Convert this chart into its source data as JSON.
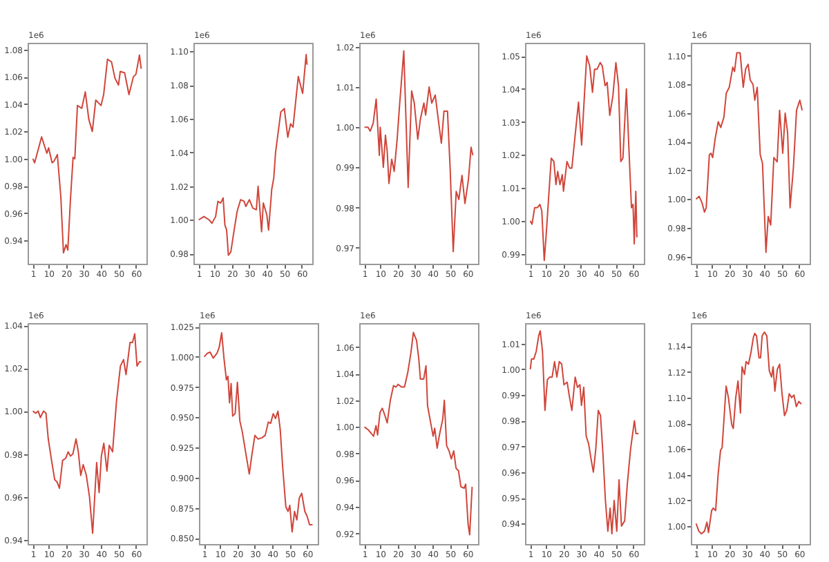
{
  "chart_data": [
    {
      "type": "line",
      "ylabel": "1e6",
      "color": "#d0453a",
      "xlim": [
        -2,
        66
      ],
      "ylim": [
        0.923,
        1.085
      ],
      "xticks": [
        1,
        10,
        20,
        30,
        40,
        50,
        60
      ],
      "yticks": [
        0.94,
        0.96,
        0.98,
        {
          "value": 1,
          "label": "1.00"
        },
        1.02,
        1.04,
        1.06,
        1.08
      ],
      "x": [
        1,
        2,
        6,
        9,
        10,
        12,
        13,
        15,
        17,
        18.5,
        20,
        21,
        22.5,
        24,
        25,
        26.5,
        29,
        31,
        33,
        35,
        37,
        40,
        41.5,
        43.7,
        46,
        48,
        50,
        51,
        53.5,
        56,
        58.5,
        60,
        62,
        63
      ],
      "values": [
        1.0,
        0.997,
        1.016,
        1.004,
        1.008,
        0.997,
        0.998,
        1.003,
        0.972,
        0.931,
        0.937,
        0.933,
        0.97,
        1.001,
        1.0,
        1.039,
        1.037,
        1.049,
        1.029,
        1.02,
        1.043,
        1.039,
        1.047,
        1.073,
        1.071,
        1.059,
        1.054,
        1.064,
        1.063,
        1.047,
        1.06,
        1.062,
        1.076,
        1.066
      ]
    },
    {
      "type": "line",
      "ylabel": "1e6",
      "color": "#d0453a",
      "xlim": [
        -2,
        66
      ],
      "ylim": [
        0.974,
        1.105
      ],
      "xticks": [
        1,
        10,
        20,
        30,
        40,
        50,
        60
      ],
      "yticks": [
        0.98,
        {
          "value": 1,
          "label": "1.00"
        },
        1.02,
        1.04,
        1.06,
        1.08,
        {
          "value": 1.1,
          "label": "1.10"
        }
      ],
      "x": [
        1,
        4,
        7,
        8.6,
        10.7,
        12,
        13.6,
        15,
        16,
        17,
        18,
        19.4,
        21,
        23,
        25,
        27,
        28,
        30,
        32,
        34,
        35,
        37,
        38,
        40,
        41,
        42.8,
        44,
        45,
        48,
        50,
        52,
        53.6,
        55,
        58,
        60.5,
        62.5,
        63
      ],
      "values": [
        1.0,
        1.002,
        1.0,
        0.998,
        1.002,
        1.011,
        1.01,
        1.013,
        0.997,
        0.994,
        0.979,
        0.981,
        0.992,
        1.005,
        1.012,
        1.011,
        1.008,
        1.012,
        1.007,
        1.006,
        1.02,
        0.993,
        1.01,
        1.003,
        0.994,
        1.018,
        1.025,
        1.04,
        1.064,
        1.066,
        1.049,
        1.057,
        1.055,
        1.085,
        1.075,
        1.098,
        1.092
      ]
    },
    {
      "type": "line",
      "ylabel": "1e6",
      "color": "#d0453a",
      "xlim": [
        -2,
        66
      ],
      "ylim": [
        0.966,
        1.021
      ],
      "xticks": [
        1,
        10,
        20,
        30,
        40,
        50,
        60
      ],
      "yticks": [
        0.97,
        0.98,
        0.99,
        {
          "value": 1,
          "label": "1.00"
        },
        1.01,
        1.02
      ],
      "x": [
        1,
        3,
        4.3,
        6,
        7.7,
        9.5,
        10,
        11.8,
        13,
        14,
        15,
        16.6,
        18,
        19.7,
        21,
        23.5,
        26,
        28,
        29.5,
        31.5,
        33,
        35,
        36,
        38,
        39.5,
        41.5,
        43.5,
        45,
        46.5,
        48.5,
        50,
        51.8,
        53.5,
        55,
        56.8,
        58.5,
        60.5,
        62,
        63
      ],
      "values": [
        1.0,
        1.0,
        0.999,
        1.001,
        1.007,
        0.993,
        1.0,
        0.99,
        0.998,
        0.994,
        0.986,
        0.992,
        0.989,
        0.997,
        1.005,
        1.019,
        0.985,
        1.009,
        1.006,
        0.997,
        1.002,
        1.006,
        1.003,
        1.01,
        1.006,
        1.008,
        1.001,
        0.996,
        1.004,
        1.004,
        0.99,
        0.969,
        0.984,
        0.982,
        0.988,
        0.981,
        0.987,
        0.995,
        0.993
      ]
    },
    {
      "type": "line",
      "ylabel": "1e6",
      "color": "#d0453a",
      "xlim": [
        -2,
        66
      ],
      "ylim": [
        0.987,
        1.054
      ],
      "xticks": [
        1,
        10,
        20,
        30,
        40,
        50,
        60
      ],
      "yticks": [
        0.99,
        {
          "value": 1,
          "label": "1.00"
        },
        1.01,
        1.02,
        1.03,
        1.04,
        1.05
      ],
      "x": [
        1,
        2,
        3.5,
        5,
        6.5,
        7.6,
        9,
        10,
        11,
        13,
        14.5,
        15.7,
        16.7,
        18,
        19.3,
        20,
        22,
        23.5,
        24.8,
        26.3,
        28.6,
        30.4,
        32.2,
        33.3,
        35,
        36.6,
        37.8,
        39.3,
        41,
        42.2,
        43.8,
        45,
        46.5,
        48.3,
        50,
        51.5,
        52.8,
        54,
        56,
        58.9,
        59.8,
        60.5,
        61.4,
        62
      ],
      "values": [
        1.0,
        0.999,
        1.004,
        1.004,
        1.005,
        1.003,
        0.988,
        0.995,
        1.003,
        1.019,
        1.018,
        1.011,
        1.015,
        1.011,
        1.014,
        1.009,
        1.018,
        1.016,
        1.016,
        1.024,
        1.036,
        1.023,
        1.04,
        1.05,
        1.047,
        1.039,
        1.046,
        1.046,
        1.048,
        1.047,
        1.041,
        1.042,
        1.032,
        1.038,
        1.048,
        1.041,
        1.018,
        1.019,
        1.04,
        1.004,
        1.005,
        0.993,
        1.009,
        0.995
      ]
    },
    {
      "type": "line",
      "ylabel": "1e6",
      "color": "#d0453a",
      "xlim": [
        -2,
        66
      ],
      "ylim": [
        0.955,
        1.109
      ],
      "xticks": [
        1,
        10,
        20,
        30,
        40,
        50,
        60
      ],
      "yticks": [
        0.96,
        0.98,
        {
          "value": 1,
          "label": "1.00"
        },
        1.02,
        1.04,
        1.06,
        1.08,
        {
          "value": 1.1,
          "label": "1.10"
        }
      ],
      "x": [
        1,
        2.8,
        4.5,
        5.8,
        6.8,
        8.6,
        9.5,
        10.5,
        11.9,
        13.7,
        15.1,
        16.9,
        18.3,
        20,
        22,
        23,
        24.3,
        26.2,
        28,
        29.4,
        30.8,
        32,
        33.6,
        34.6,
        36,
        37.7,
        39,
        41,
        42.3,
        43.7,
        45.5,
        47.4,
        48.8,
        50.6,
        52,
        53.4,
        54.8,
        56.7,
        58.5,
        60.4,
        61.7
      ],
      "values": [
        1.0,
        1.002,
        0.997,
        0.991,
        0.994,
        1.031,
        1.032,
        1.029,
        1.042,
        1.054,
        1.05,
        1.057,
        1.074,
        1.078,
        1.092,
        1.089,
        1.102,
        1.102,
        1.078,
        1.091,
        1.094,
        1.083,
        1.08,
        1.069,
        1.078,
        1.031,
        1.025,
        0.963,
        0.988,
        0.982,
        1.029,
        1.026,
        1.062,
        1.032,
        1.06,
        1.046,
        0.994,
        1.022,
        1.062,
        1.069,
        1.062
      ]
    },
    {
      "type": "line",
      "ylabel": "1e6",
      "color": "#d0453a",
      "xlim": [
        -2,
        66
      ],
      "ylim": [
        0.938,
        1.041
      ],
      "xticks": [
        1,
        10,
        20,
        30,
        40,
        50,
        60
      ],
      "yticks": [
        0.94,
        0.96,
        0.98,
        {
          "value": 1,
          "label": "1.00"
        },
        1.02,
        1.04
      ],
      "x": [
        1,
        2.6,
        4,
        5.3,
        7.1,
        8.5,
        9.8,
        11.7,
        13.5,
        14.8,
        16.2,
        18,
        19.8,
        21.2,
        22.5,
        23.9,
        25.7,
        27,
        28.4,
        29.8,
        31.6,
        33.4,
        35.2,
        37.5,
        38.9,
        40.2,
        41.6,
        43.4,
        44.7,
        46.6,
        48.8,
        51.1,
        52.9,
        54.3,
        56.6,
        58,
        59.3,
        60.6,
        62,
        63
      ],
      "values": [
        1.0,
        0.999,
        1.0,
        0.997,
        1.0,
        0.999,
        0.987,
        0.977,
        0.968,
        0.967,
        0.964,
        0.977,
        0.978,
        0.981,
        0.979,
        0.98,
        0.987,
        0.981,
        0.97,
        0.975,
        0.97,
        0.96,
        0.943,
        0.976,
        0.962,
        0.979,
        0.985,
        0.972,
        0.984,
        0.981,
        1.004,
        1.021,
        1.024,
        1.017,
        1.032,
        1.032,
        1.036,
        1.021,
        1.023,
        1.023
      ]
    },
    {
      "type": "line",
      "ylabel": "1e6",
      "color": "#d0453a",
      "xlim": [
        -2,
        66
      ],
      "ylim": [
        0.845,
        1.028
      ],
      "xticks": [
        1,
        10,
        20,
        30,
        40,
        50,
        60
      ],
      "yticks": [
        {
          "value": 0.85,
          "label": "0.850"
        },
        0.875,
        {
          "value": 0.9,
          "label": "0.900"
        },
        0.925,
        {
          "value": 0.95,
          "label": "0.950"
        },
        0.975,
        {
          "value": 1,
          "label": "1.000"
        },
        1.025
      ],
      "x": [
        1,
        2.8,
        4.4,
        6.2,
        8.3,
        9.6,
        11,
        12.3,
        13.7,
        14.6,
        15.5,
        16.4,
        17.3,
        18.7,
        20,
        21.4,
        22.8,
        24.6,
        26.8,
        28.2,
        30,
        31.8,
        34,
        35.9,
        37.7,
        39,
        40.5,
        41.8,
        43.2,
        44.5,
        45.9,
        47.7,
        49,
        50,
        51.3,
        52.7,
        54,
        55.4,
        56.8,
        58.6,
        59.9,
        61.3,
        63
      ],
      "values": [
        1.0,
        1.003,
        1.004,
        0.999,
        1.003,
        1.008,
        1.02,
        0.999,
        0.981,
        0.984,
        0.962,
        0.978,
        0.951,
        0.953,
        0.979,
        0.947,
        0.938,
        0.922,
        0.903,
        0.918,
        0.935,
        0.932,
        0.933,
        0.935,
        0.946,
        0.945,
        0.953,
        0.949,
        0.955,
        0.94,
        0.909,
        0.876,
        0.872,
        0.877,
        0.855,
        0.872,
        0.865,
        0.883,
        0.887,
        0.872,
        0.868,
        0.861,
        0.861
      ]
    },
    {
      "type": "line",
      "ylabel": "1e6",
      "color": "#d0453a",
      "xlim": [
        -2,
        66
      ],
      "ylim": [
        0.912,
        1.078
      ],
      "xticks": [
        1,
        10,
        20,
        30,
        40,
        50,
        60
      ],
      "yticks": [
        0.92,
        0.94,
        0.96,
        0.98,
        {
          "value": 1,
          "label": "1.00"
        },
        1.02,
        1.04,
        1.06
      ],
      "x": [
        1,
        3,
        5,
        6.2,
        7.6,
        8.5,
        9.9,
        11.2,
        12.6,
        14,
        15.8,
        17.6,
        19,
        20.3,
        22.1,
        23.9,
        25.8,
        27.6,
        29,
        30.8,
        32.1,
        33,
        34.9,
        36.2,
        37.1,
        38.9,
        40.3,
        41.2,
        42.6,
        43.9,
        45.8,
        46.7,
        48,
        49.4,
        50.7,
        52.1,
        53.4,
        54.8,
        56.2,
        58,
        58.9,
        60.3,
        61.2,
        62.6
      ],
      "values": [
        1.0,
        0.998,
        0.995,
        0.993,
        1.001,
        0.994,
        1.011,
        1.014,
        1.009,
        1.003,
        1.02,
        1.031,
        1.03,
        1.032,
        1.03,
        1.03,
        1.041,
        1.056,
        1.071,
        1.065,
        1.051,
        1.036,
        1.036,
        1.046,
        1.016,
        1.003,
        0.993,
        0.999,
        0.984,
        0.994,
        1.006,
        1.02,
        0.986,
        0.982,
        0.976,
        0.982,
        0.969,
        0.967,
        0.955,
        0.954,
        0.957,
        0.927,
        0.919,
        0.955
      ]
    },
    {
      "type": "line",
      "ylabel": "1e6",
      "color": "#d0453a",
      "xlim": [
        -2,
        66
      ],
      "ylim": [
        0.932,
        1.018
      ],
      "xticks": [
        1,
        10,
        20,
        30,
        40,
        50,
        60
      ],
      "yticks": [
        0.94,
        0.95,
        0.96,
        0.97,
        0.98,
        0.99,
        {
          "value": 1,
          "label": "1.00"
        },
        1.01
      ],
      "x": [
        1,
        1.7,
        3,
        4.4,
        5.8,
        6.7,
        8,
        9.4,
        10.8,
        12.1,
        13.5,
        14.9,
        16.2,
        17.6,
        19,
        20.3,
        22.1,
        23.5,
        24.8,
        26.7,
        28,
        29.4,
        30.3,
        31.6,
        33,
        34.4,
        35.8,
        37.1,
        38.5,
        39.9,
        41.2,
        42.6,
        44,
        45.4,
        46.7,
        47.7,
        49,
        50.5,
        51.8,
        53.2,
        55,
        56.5,
        58.4,
        60.6,
        61.5,
        62.9
      ],
      "values": [
        1.0,
        1.004,
        1.004,
        1.007,
        1.013,
        1.015,
        1.007,
        0.984,
        0.996,
        0.997,
        0.997,
        1.003,
        0.997,
        1.003,
        1.002,
        0.994,
        0.995,
        0.989,
        0.984,
        0.997,
        0.993,
        0.994,
        0.986,
        0.993,
        0.974,
        0.971,
        0.965,
        0.96,
        0.969,
        0.984,
        0.982,
        0.967,
        0.949,
        0.937,
        0.946,
        0.936,
        0.949,
        0.937,
        0.957,
        0.939,
        0.941,
        0.955,
        0.969,
        0.98,
        0.975,
        0.975
      ]
    },
    {
      "type": "line",
      "ylabel": "1e6",
      "color": "#d0453a",
      "xlim": [
        -2,
        66
      ],
      "ylim": [
        0.986,
        1.158
      ],
      "xticks": [
        1,
        10,
        20,
        30,
        40,
        50,
        60
      ],
      "yticks": [
        {
          "value": 1,
          "label": "1.00"
        },
        1.02,
        1.04,
        1.06,
        1.08,
        {
          "value": 1.1,
          "label": "1.10"
        },
        1.12,
        1.14
      ],
      "x": [
        1,
        2.6,
        4,
        5.8,
        7.2,
        8.1,
        9.9,
        10.8,
        12.2,
        13.6,
        15,
        15.9,
        17.2,
        18.2,
        19.5,
        21.4,
        22.3,
        23.7,
        25,
        26.4,
        27.3,
        28.7,
        29.6,
        31,
        32.4,
        33.8,
        34.6,
        35.6,
        37,
        37.9,
        38.8,
        40.1,
        41.5,
        42.9,
        44.2,
        45.1,
        46.1,
        47.5,
        48.8,
        50.2,
        51.6,
        52.9,
        54.3,
        55.7,
        57,
        58.4,
        59.8,
        61.2
      ],
      "values": [
        1.002,
        0.996,
        0.994,
        0.996,
        1.003,
        0.995,
        1.012,
        1.014,
        1.012,
        1.04,
        1.059,
        1.061,
        1.088,
        1.109,
        1.1,
        1.079,
        1.076,
        1.1,
        1.113,
        1.088,
        1.124,
        1.118,
        1.128,
        1.126,
        1.135,
        1.147,
        1.15,
        1.148,
        1.131,
        1.131,
        1.148,
        1.151,
        1.148,
        1.121,
        1.116,
        1.124,
        1.105,
        1.122,
        1.126,
        1.103,
        1.086,
        1.09,
        1.103,
        1.1,
        1.102,
        1.093,
        1.097,
        1.095
      ]
    }
  ]
}
